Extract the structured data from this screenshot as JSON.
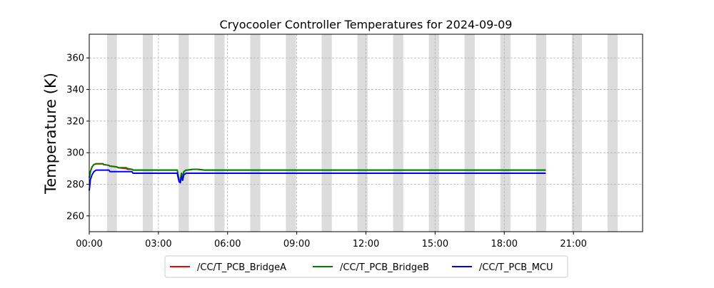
{
  "chart_data": {
    "type": "line",
    "title": "Cryocooler Controller Temperatures for 2024-09-09",
    "xlabel": "",
    "ylabel": "Temperature (K)",
    "x_unit": "hours",
    "xlim": [
      0,
      24
    ],
    "ylim": [
      250,
      375
    ],
    "x_ticks": [
      0,
      3,
      6,
      9,
      12,
      15,
      18,
      21
    ],
    "x_tick_labels": [
      "00:00",
      "03:00",
      "06:00",
      "09:00",
      "12:00",
      "15:00",
      "18:00",
      "21:00"
    ],
    "y_ticks": [
      260,
      280,
      300,
      320,
      340,
      360
    ],
    "y_tick_labels": [
      "260",
      "280",
      "300",
      "320",
      "340",
      "360"
    ],
    "grid": true,
    "legend_position": "bottom-center",
    "shaded_bands": [
      [
        0.77,
        1.2
      ],
      [
        2.32,
        2.76
      ],
      [
        3.88,
        4.32
      ],
      [
        5.43,
        5.87
      ],
      [
        6.98,
        7.42
      ],
      [
        8.53,
        8.97
      ],
      [
        10.08,
        10.52
      ],
      [
        11.63,
        12.07
      ],
      [
        13.18,
        13.62
      ],
      [
        14.73,
        15.17
      ],
      [
        16.28,
        16.72
      ],
      [
        17.83,
        18.27
      ],
      [
        19.38,
        19.82
      ],
      [
        20.93,
        21.37
      ],
      [
        22.48,
        22.92
      ]
    ],
    "band_color": "#dcdcdc",
    "series": [
      {
        "name": "/CC/T_PCB_BridgeA",
        "color": "#ff0000",
        "x": [
          0,
          0.05,
          0.12,
          0.2,
          0.3,
          0.4,
          0.6,
          0.62,
          0.85,
          0.9,
          1.2,
          1.25,
          1.6,
          1.65,
          1.85,
          1.9,
          3.82,
          3.85,
          3.9,
          3.95,
          4.0,
          4.05,
          4.1,
          4.15,
          4.2,
          4.25,
          4.5,
          4.7,
          5.0,
          19.8
        ],
        "y": [
          284,
          288,
          291,
          292.5,
          293,
          293,
          293,
          292.5,
          292,
          291.5,
          291,
          290.5,
          290,
          289.5,
          289.5,
          289,
          289,
          286,
          282.5,
          282,
          287,
          284,
          288,
          288.5,
          289,
          289,
          289.5,
          289.5,
          289,
          289
        ]
      },
      {
        "name": "/CC/T_PCB_BridgeB",
        "color": "#008000",
        "x": [
          0,
          0.05,
          0.12,
          0.2,
          0.3,
          0.4,
          0.6,
          0.62,
          0.85,
          0.9,
          1.2,
          1.25,
          1.6,
          1.65,
          1.85,
          1.9,
          3.82,
          3.85,
          3.9,
          3.95,
          4.0,
          4.05,
          4.1,
          4.15,
          4.2,
          4.25,
          4.5,
          4.7,
          5.0,
          19.8
        ],
        "y": [
          284,
          288,
          291,
          292.5,
          293,
          293,
          293,
          292.5,
          292,
          291.5,
          291,
          290.5,
          290.5,
          290,
          289.5,
          289,
          289,
          286,
          282.5,
          282,
          287,
          284,
          288,
          288.5,
          289,
          289,
          289.5,
          289.5,
          289,
          289
        ]
      },
      {
        "name": "/CC/T_PCB_MCU",
        "color": "#0000ff",
        "x": [
          0,
          0.05,
          0.12,
          0.2,
          0.3,
          0.45,
          0.85,
          0.9,
          1.85,
          1.9,
          3.82,
          3.85,
          3.9,
          3.95,
          4.0,
          4.05,
          4.1,
          4.15,
          4.2,
          19.8
        ],
        "y": [
          276,
          283,
          286,
          288,
          289,
          289,
          289,
          288,
          288,
          287,
          287,
          284.5,
          281.5,
          281,
          285,
          282.5,
          286,
          286.5,
          287,
          287
        ]
      }
    ]
  }
}
